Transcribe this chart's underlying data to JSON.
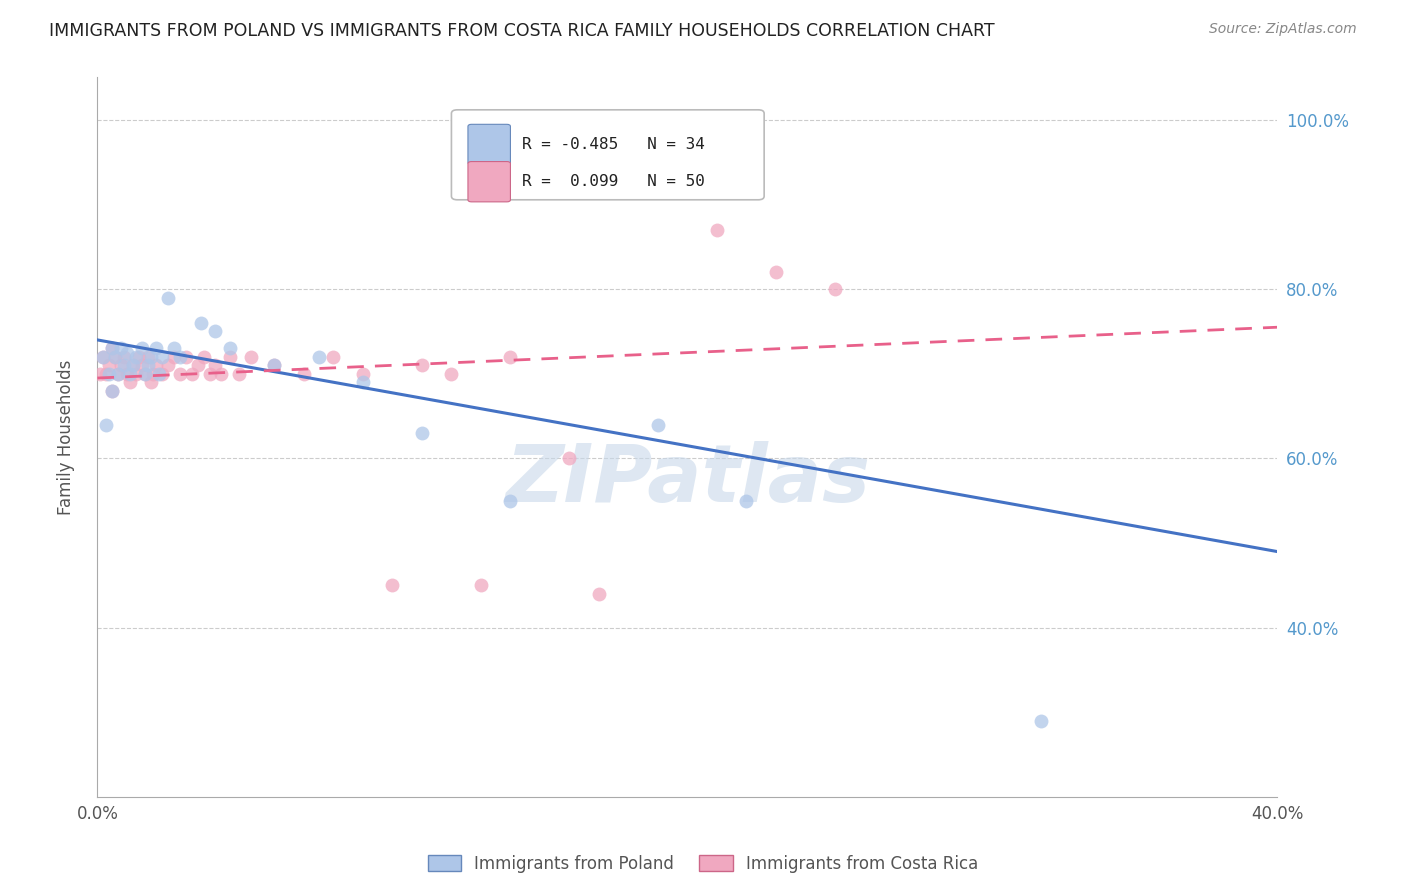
{
  "title": "IMMIGRANTS FROM POLAND VS IMMIGRANTS FROM COSTA RICA FAMILY HOUSEHOLDS CORRELATION CHART",
  "source": "Source: ZipAtlas.com",
  "ylabel_label": "Family Households",
  "xmin": 0.0,
  "xmax": 0.4,
  "ymin": 0.2,
  "ymax": 1.05,
  "xtick_vals": [
    0.0,
    0.1,
    0.2,
    0.3,
    0.4
  ],
  "xtick_labels": [
    "0.0%",
    "",
    "",
    "",
    "40.0%"
  ],
  "ytick_vals": [
    0.4,
    0.6,
    0.8,
    1.0
  ],
  "ytick_labels_right": [
    "40.0%",
    "60.0%",
    "80.0%",
    "100.0%"
  ],
  "poland_scatter_x": [
    0.002,
    0.003,
    0.004,
    0.005,
    0.005,
    0.006,
    0.007,
    0.008,
    0.009,
    0.01,
    0.011,
    0.012,
    0.013,
    0.015,
    0.016,
    0.017,
    0.018,
    0.02,
    0.021,
    0.022,
    0.024,
    0.026,
    0.028,
    0.035,
    0.04,
    0.045,
    0.06,
    0.075,
    0.09,
    0.11,
    0.14,
    0.19,
    0.22,
    0.32
  ],
  "poland_scatter_y": [
    0.72,
    0.64,
    0.7,
    0.73,
    0.68,
    0.72,
    0.7,
    0.73,
    0.71,
    0.725,
    0.7,
    0.71,
    0.72,
    0.73,
    0.7,
    0.71,
    0.72,
    0.73,
    0.7,
    0.72,
    0.79,
    0.73,
    0.72,
    0.76,
    0.75,
    0.73,
    0.71,
    0.72,
    0.69,
    0.63,
    0.55,
    0.64,
    0.55,
    0.29
  ],
  "costarica_scatter_x": [
    0.001,
    0.002,
    0.003,
    0.004,
    0.005,
    0.005,
    0.006,
    0.007,
    0.008,
    0.009,
    0.01,
    0.011,
    0.012,
    0.013,
    0.014,
    0.015,
    0.016,
    0.017,
    0.018,
    0.019,
    0.02,
    0.022,
    0.024,
    0.026,
    0.028,
    0.03,
    0.032,
    0.034,
    0.036,
    0.038,
    0.04,
    0.042,
    0.045,
    0.048,
    0.052,
    0.06,
    0.07,
    0.08,
    0.09,
    0.1,
    0.11,
    0.12,
    0.13,
    0.14,
    0.16,
    0.17,
    0.19,
    0.21,
    0.23,
    0.25
  ],
  "costarica_scatter_y": [
    0.7,
    0.72,
    0.7,
    0.71,
    0.73,
    0.68,
    0.72,
    0.7,
    0.71,
    0.72,
    0.7,
    0.69,
    0.71,
    0.7,
    0.72,
    0.71,
    0.7,
    0.72,
    0.69,
    0.7,
    0.71,
    0.7,
    0.71,
    0.72,
    0.7,
    0.72,
    0.7,
    0.71,
    0.72,
    0.7,
    0.71,
    0.7,
    0.72,
    0.7,
    0.72,
    0.71,
    0.7,
    0.72,
    0.7,
    0.45,
    0.71,
    0.7,
    0.45,
    0.72,
    0.6,
    0.44,
    0.96,
    0.87,
    0.82,
    0.8
  ],
  "poland_line_x": [
    0.0,
    0.4
  ],
  "poland_line_y": [
    0.74,
    0.49
  ],
  "poland_line_color": "#4472c4",
  "costarica_line_x": [
    0.0,
    0.4
  ],
  "costarica_line_y": [
    0.695,
    0.755
  ],
  "costarica_line_color": "#e8608a",
  "scatter_poland_color": "#aec6e8",
  "scatter_costarica_color": "#f0a8c0",
  "scatter_alpha": 0.75,
  "scatter_size": 100,
  "watermark": "ZIPatlas",
  "watermark_color": "#c8d8ea",
  "background_color": "#ffffff",
  "grid_color": "#cccccc",
  "legend_r1": "R = -0.485",
  "legend_n1": "N = 34",
  "legend_r2": "R =  0.099",
  "legend_n2": "N = 50",
  "legend_label1": "Immigrants from Poland",
  "legend_label2": "Immigrants from Costa Rica"
}
